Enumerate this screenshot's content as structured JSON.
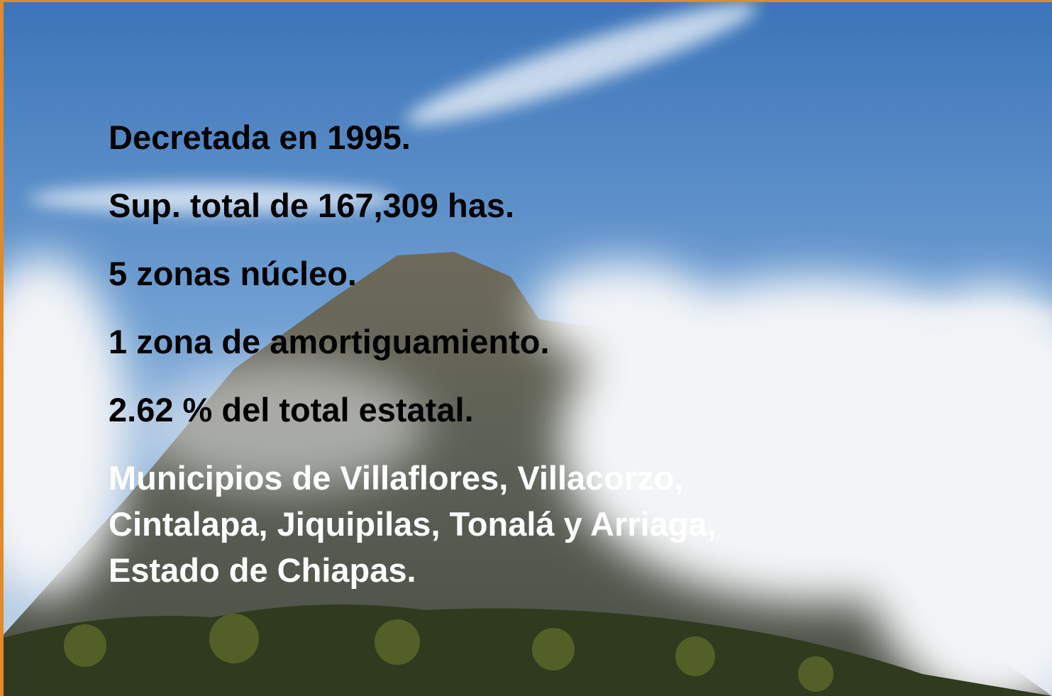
{
  "slide": {
    "facts": [
      "Decretada en 1995.",
      "Sup. total de 167,309 has.",
      "5 zonas núcleo.",
      "1 zona de amortiguamiento.",
      "2.62 % del total estatal."
    ],
    "location": [
      "Municipios de Villaflores, Villacorzo,",
      "Cintalapa, Jiquipilas, Tonalá y Arriaga,",
      "Estado de Chiapas."
    ]
  }
}
